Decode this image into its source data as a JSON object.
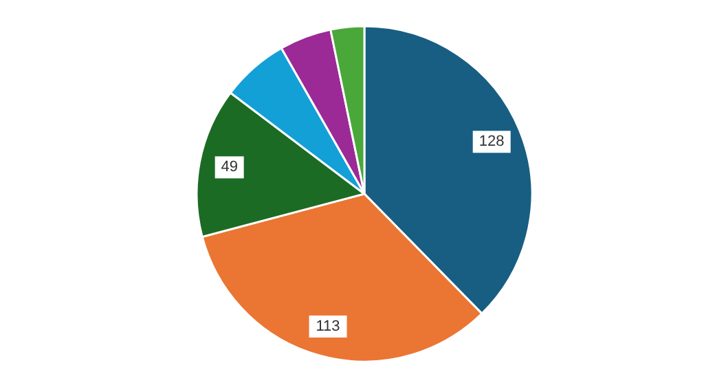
{
  "chart_data": {
    "type": "pie",
    "categories": [
      null,
      null,
      null,
      null,
      null,
      null
    ],
    "values": [
      128,
      113,
      49,
      22,
      17,
      11
    ],
    "colors": [
      "#175e82",
      "#eb7533",
      "#1c6b24",
      "#12a0d7",
      "#9b2a96",
      "#4aa83a"
    ],
    "value_labels": [
      "128",
      "113",
      "49",
      null,
      null,
      null
    ]
  }
}
